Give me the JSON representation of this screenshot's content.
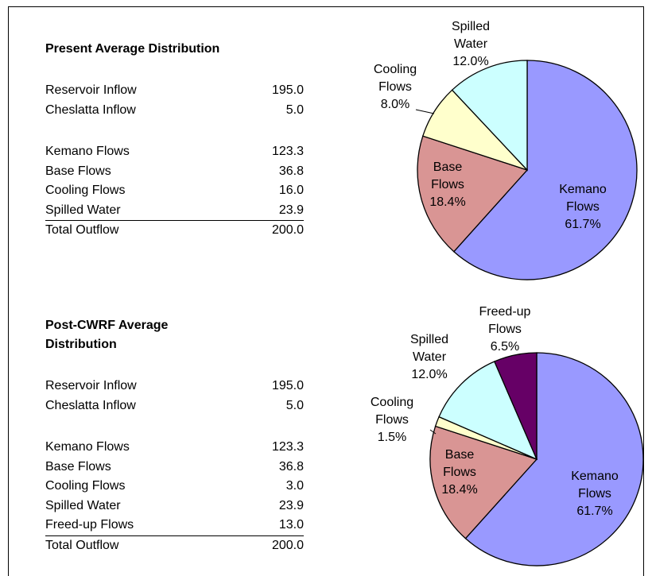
{
  "sections": [
    {
      "title": "Present Average Distribution",
      "inflows": [
        [
          "Reservoir Inflow",
          "195.0"
        ],
        [
          "Cheslatta Inflow",
          "5.0"
        ]
      ],
      "outflows": [
        [
          "Kemano Flows",
          "123.3"
        ],
        [
          "Base Flows",
          "36.8"
        ],
        [
          "Cooling Flows",
          "16.0"
        ],
        [
          "Spilled Water",
          "23.9"
        ]
      ],
      "total": [
        "Total Outflow",
        "200.0"
      ]
    },
    {
      "title": "Post-CWRF Average Distribution",
      "inflows": [
        [
          "Reservoir Inflow",
          "195.0"
        ],
        [
          "Cheslatta Inflow",
          "5.0"
        ]
      ],
      "outflows": [
        [
          "Kemano Flows",
          "123.3"
        ],
        [
          "Base Flows",
          "36.8"
        ],
        [
          "Cooling Flows",
          "3.0"
        ],
        [
          "Spilled Water",
          "23.9"
        ],
        [
          "Freed-up Flows",
          "13.0"
        ]
      ],
      "total": [
        "Total Outflow",
        "200.0"
      ]
    }
  ],
  "chart_data": [
    {
      "type": "pie",
      "categories": [
        "Kemano Flows",
        "Base Flows",
        "Cooling Flows",
        "Spilled Water"
      ],
      "values": [
        61.7,
        18.4,
        8.0,
        12.0
      ],
      "value_labels": [
        "61.7%",
        "18.4%",
        "8.0%",
        "12.0%"
      ],
      "colors": [
        "#9999ff",
        "#d99594",
        "#ffffcc",
        "#ccffff"
      ]
    },
    {
      "type": "pie",
      "categories": [
        "Kemano Flows",
        "Base Flows",
        "Cooling Flows",
        "Spilled Water",
        "Freed-up Flows"
      ],
      "values": [
        61.7,
        18.4,
        1.5,
        12.0,
        6.5
      ],
      "value_labels": [
        "61.7%",
        "18.4%",
        "1.5%",
        "12.0%",
        "6.5%"
      ],
      "colors": [
        "#9999ff",
        "#d99594",
        "#ffffcc",
        "#ccffff",
        "#660066"
      ]
    }
  ]
}
